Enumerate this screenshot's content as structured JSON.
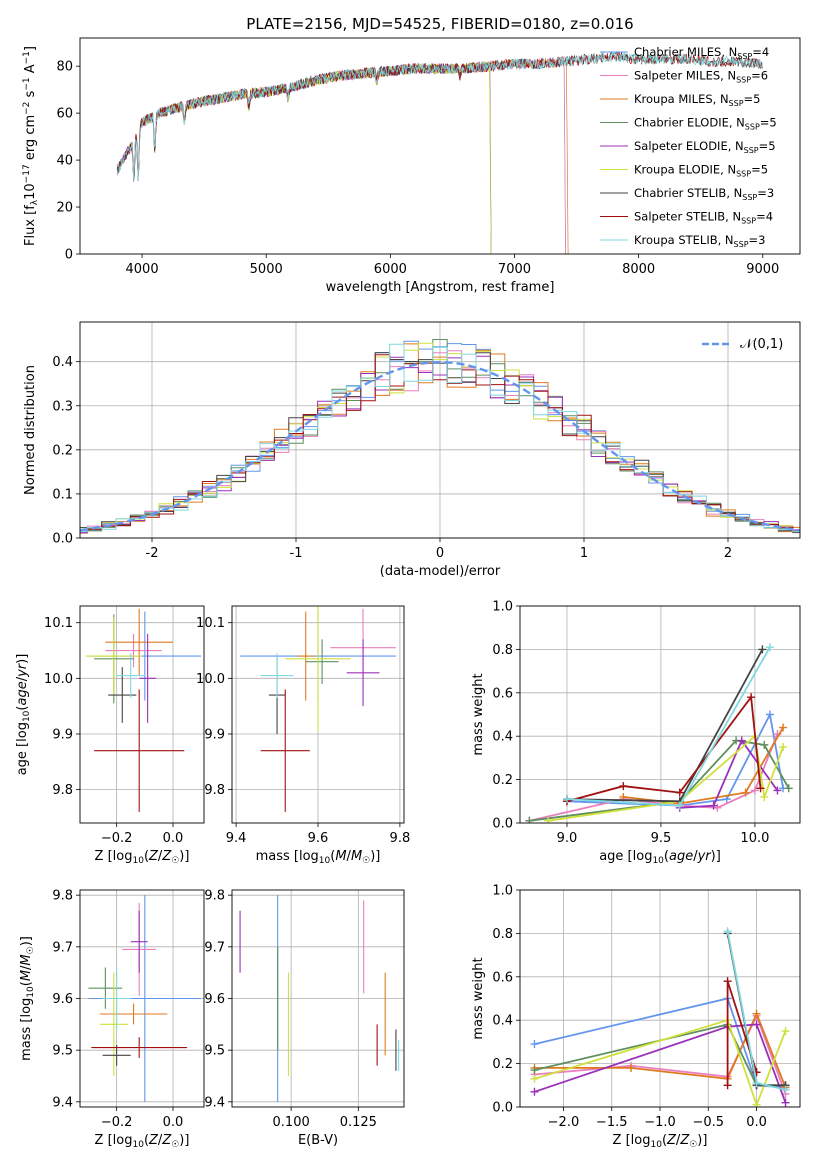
{
  "figure": {
    "title": "PLATE=2156, MJD=54525, FIBERID=0180, z=0.016"
  },
  "chart_data": [
    {
      "type": "line",
      "panel": "spectrum",
      "xlabel": "wavelength [Angstrom, rest frame]",
      "ylabel": "Flux [f_λ 10^-17 erg cm^-2 s^-1 A^-1]",
      "xlim": [
        3500,
        9300
      ],
      "ylim": [
        0,
        92
      ],
      "xticks": [
        4000,
        5000,
        6000,
        7000,
        8000,
        9000
      ],
      "yticks": [
        0,
        20,
        40,
        60,
        80
      ],
      "legend_position": "top-right",
      "series": [
        {
          "name": "Chabrier MILES, N_SSP=4",
          "color": "#6495ed",
          "x_range": [
            3800,
            7400
          ]
        },
        {
          "name": "Salpeter MILES, N_SSP=6",
          "color": "#e87fbf",
          "x_range": [
            3800,
            7400
          ]
        },
        {
          "name": "Kroupa MILES, N_SSP=5",
          "color": "#e07a1f",
          "x_range": [
            3800,
            7420
          ]
        },
        {
          "name": "Chabrier ELODIE, N_SSP=5",
          "color": "#5f8f5f",
          "x_range": [
            3800,
            6800
          ]
        },
        {
          "name": "Salpeter ELODIE, N_SSP=5",
          "color": "#9b30b8",
          "x_range": [
            3800,
            6800
          ]
        },
        {
          "name": "Kroupa ELODIE, N_SSP=5",
          "color": "#cfe03c",
          "x_range": [
            3900,
            6800
          ]
        },
        {
          "name": "Chabrier STELIB, N_SSP=3",
          "color": "#444444",
          "x_range": [
            3800,
            9000
          ]
        },
        {
          "name": "Salpeter STELIB, N_SSP=4",
          "color": "#a01010",
          "x_range": [
            3800,
            9000
          ]
        },
        {
          "name": "Kroupa STELIB, N_SSP=3",
          "color": "#7fd8e0",
          "x_range": [
            3800,
            9000
          ]
        }
      ],
      "continuum": {
        "x": [
          3780,
          3850,
          3920,
          3960,
          4000,
          4100,
          4200,
          4400,
          4600,
          4800,
          5000,
          5200,
          5400,
          5600,
          5800,
          6000,
          6200,
          6400,
          6600,
          6800,
          7000,
          7200,
          7400,
          7600,
          7800,
          8000,
          8200,
          8400,
          8600,
          8800,
          9000
        ],
        "y": [
          34,
          40,
          47,
          52,
          56,
          59,
          61,
          64,
          66,
          68,
          69,
          71,
          74,
          76,
          77,
          78,
          79,
          79,
          79,
          80,
          81,
          81,
          82,
          83,
          84,
          83,
          83,
          83,
          82,
          82,
          81
        ]
      }
    },
    {
      "type": "histogram",
      "panel": "residuals",
      "xlabel": "(data-model)/error",
      "ylabel": "Normed distribution",
      "xlim": [
        -2.5,
        2.5
      ],
      "ylim": [
        0,
        0.49
      ],
      "xticks": [
        -2,
        -1,
        0,
        1,
        2
      ],
      "yticks": [
        0.0,
        0.1,
        0.2,
        0.3,
        0.4
      ],
      "bin_width": 0.1,
      "grid": true,
      "legend": {
        "label": "𝒩(0,1)",
        "position": "top-right",
        "color": "#6495ed",
        "style": "dashed"
      },
      "colors": [
        "#6495ed",
        "#e87fbf",
        "#e07a1f",
        "#5f8f5f",
        "#9b30b8",
        "#cfe03c",
        "#444444",
        "#a01010",
        "#7fd8e0"
      ]
    },
    {
      "type": "scatter",
      "panel": "age-vs-Z",
      "xlabel": "Z [log10(Z/Z☉)]",
      "ylabel": "age [log10(age/yr)]",
      "xlim": [
        -0.33,
        0.11
      ],
      "ylim": [
        9.74,
        10.13
      ],
      "xticks": [
        -0.2,
        0.0
      ],
      "yticks": [
        9.8,
        9.9,
        10.0,
        10.1
      ],
      "grid": true,
      "points": [
        {
          "x": -0.1,
          "y": 10.04,
          "xerr": 0.2,
          "yerr": 0.08,
          "color": "#6495ed"
        },
        {
          "x": -0.14,
          "y": 10.05,
          "xerr": 0.1,
          "yerr": 0.03,
          "color": "#e87fbf"
        },
        {
          "x": -0.12,
          "y": 10.065,
          "xerr": 0.12,
          "yerr": 0.06,
          "color": "#e07a1f"
        },
        {
          "x": -0.21,
          "y": 10.035,
          "xerr": 0.07,
          "yerr": 0.08,
          "color": "#5f8f5f"
        },
        {
          "x": -0.09,
          "y": 10.0,
          "xerr": 0.03,
          "yerr": 0.08,
          "color": "#9b30b8"
        },
        {
          "x": -0.21,
          "y": 10.04,
          "xerr": 0.1,
          "yerr": 0.07,
          "color": "#cfe03c"
        },
        {
          "x": -0.18,
          "y": 9.97,
          "xerr": 0.05,
          "yerr": 0.05,
          "color": "#444444"
        },
        {
          "x": -0.12,
          "y": 9.87,
          "xerr": 0.16,
          "yerr": 0.11,
          "color": "#a01010"
        },
        {
          "x": -0.15,
          "y": 10.005,
          "xerr": 0.05,
          "yerr": 0.04,
          "color": "#7fd8e0"
        }
      ]
    },
    {
      "type": "scatter",
      "panel": "age-vs-mass",
      "xlabel": "mass [log10(M/M☉)]",
      "ylabel": "",
      "xlim": [
        9.39,
        9.81
      ],
      "ylim": [
        9.74,
        10.13
      ],
      "xticks": [
        9.4,
        9.6,
        9.8
      ],
      "yticks": [
        9.8,
        9.9,
        10.0,
        10.1
      ],
      "grid": true,
      "points": [
        {
          "x": 9.6,
          "y": 10.04,
          "xerr": 0.19,
          "yerr": 0.08,
          "color": "#6495ed"
        },
        {
          "x": 9.71,
          "y": 10.055,
          "xerr": 0.08,
          "yerr": 0.07,
          "color": "#e87fbf"
        },
        {
          "x": 9.57,
          "y": 10.04,
          "xerr": 0.02,
          "yerr": 0.08,
          "color": "#e07a1f"
        },
        {
          "x": 9.61,
          "y": 10.03,
          "xerr": 0.04,
          "yerr": 0.04,
          "color": "#5f8f5f"
        },
        {
          "x": 9.71,
          "y": 10.01,
          "xerr": 0.04,
          "yerr": 0.06,
          "color": "#9b30b8"
        },
        {
          "x": 9.6,
          "y": 10.035,
          "xerr": 0.08,
          "yerr": 0.13,
          "color": "#cfe03c"
        },
        {
          "x": 9.5,
          "y": 9.97,
          "xerr": 0.02,
          "yerr": 0.07,
          "color": "#444444"
        },
        {
          "x": 9.52,
          "y": 9.87,
          "xerr": 0.06,
          "yerr": 0.11,
          "color": "#a01010"
        },
        {
          "x": 9.5,
          "y": 10.005,
          "xerr": 0.04,
          "yerr": 0.04,
          "color": "#7fd8e0"
        }
      ]
    },
    {
      "type": "line",
      "panel": "mass-weight-vs-age",
      "xlabel": "age [log10(age/yr)]",
      "ylabel": "mass weight",
      "xlim": [
        8.75,
        10.24
      ],
      "ylim": [
        0,
        1
      ],
      "xticks": [
        9.0,
        9.5,
        10.0
      ],
      "yticks": [
        0.0,
        0.2,
        0.4,
        0.6,
        0.8,
        1.0
      ],
      "grid": true,
      "series": [
        {
          "color": "#6495ed",
          "x": [
            9.0,
            9.6,
            9.85,
            10.08,
            10.15
          ],
          "y": [
            0.1,
            0.08,
            0.11,
            0.5,
            0.16
          ]
        },
        {
          "color": "#e87fbf",
          "x": [
            8.8,
            9.3,
            9.6,
            9.8,
            10.0,
            10.12
          ],
          "y": [
            0.01,
            0.11,
            0.08,
            0.07,
            0.15,
            0.41
          ]
        },
        {
          "color": "#e07a1f",
          "x": [
            9.3,
            9.6,
            9.95,
            10.15
          ],
          "y": [
            0.12,
            0.09,
            0.14,
            0.44
          ]
        },
        {
          "color": "#5f8f5f",
          "x": [
            8.8,
            9.6,
            9.9,
            10.05,
            10.18
          ],
          "y": [
            0.01,
            0.1,
            0.38,
            0.36,
            0.16
          ]
        },
        {
          "color": "#9b30b8",
          "x": [
            9.6,
            9.78,
            9.93,
            10.12
          ],
          "y": [
            0.07,
            0.08,
            0.38,
            0.15
          ]
        },
        {
          "color": "#cfe03c",
          "x": [
            8.9,
            9.6,
            10.0,
            10.05,
            10.15
          ],
          "y": [
            0.01,
            0.1,
            0.4,
            0.12,
            0.35
          ]
        },
        {
          "color": "#444444",
          "x": [
            9.0,
            9.6,
            10.04
          ],
          "y": [
            0.11,
            0.1,
            0.8
          ]
        },
        {
          "color": "#a01010",
          "x": [
            9.0,
            9.3,
            9.6,
            9.98,
            10.03
          ],
          "y": [
            0.1,
            0.17,
            0.14,
            0.58,
            0.16
          ]
        },
        {
          "color": "#7fd8e0",
          "x": [
            9.0,
            9.6,
            10.08
          ],
          "y": [
            0.11,
            0.08,
            0.81
          ]
        }
      ]
    },
    {
      "type": "scatter",
      "panel": "mass-vs-Z",
      "xlabel": "Z [log10(Z/Z☉)]",
      "ylabel": "mass [log10(M/M☉)]",
      "xlim": [
        -0.33,
        0.11
      ],
      "ylim": [
        9.39,
        9.81
      ],
      "xticks": [
        -0.2,
        0.0
      ],
      "yticks": [
        9.4,
        9.5,
        9.6,
        9.7,
        9.8
      ],
      "grid": true,
      "points": [
        {
          "x": -0.1,
          "y": 9.6,
          "xerr": 0.2,
          "yerr": 0.2,
          "color": "#6495ed"
        },
        {
          "x": -0.12,
          "y": 9.695,
          "xerr": 0.06,
          "yerr": 0.09,
          "color": "#e87fbf"
        },
        {
          "x": -0.14,
          "y": 9.57,
          "xerr": 0.12,
          "yerr": 0.02,
          "color": "#e07a1f"
        },
        {
          "x": -0.24,
          "y": 9.62,
          "xerr": 0.06,
          "yerr": 0.04,
          "color": "#5f8f5f"
        },
        {
          "x": -0.12,
          "y": 9.71,
          "xerr": 0.03,
          "yerr": 0.06,
          "color": "#9b30b8"
        },
        {
          "x": -0.21,
          "y": 9.55,
          "xerr": 0.05,
          "yerr": 0.1,
          "color": "#cfe03c"
        },
        {
          "x": -0.2,
          "y": 9.49,
          "xerr": 0.05,
          "yerr": 0.02,
          "color": "#444444"
        },
        {
          "x": -0.12,
          "y": 9.505,
          "xerr": 0.17,
          "yerr": 0.02,
          "color": "#a01010"
        },
        {
          "x": -0.2,
          "y": 9.6,
          "xerr": 0.05,
          "yerr": 0.06,
          "color": "#7fd8e0"
        }
      ]
    },
    {
      "type": "scatter",
      "panel": "mass-vs-EBV",
      "xlabel": "E(B-V)",
      "ylabel": "",
      "xlim": [
        0.078,
        0.142
      ],
      "ylim": [
        9.39,
        9.81
      ],
      "xticks": [
        0.1,
        0.125
      ],
      "xticklabels": [
        "0.100",
        "0.125"
      ],
      "yticks": [
        9.4,
        9.5,
        9.6,
        9.7,
        9.8
      ],
      "grid": true,
      "points": [
        {
          "x": 0.095,
          "y": 9.6,
          "yerr": 0.2,
          "color": "#6495ed"
        },
        {
          "x": 0.127,
          "y": 9.7,
          "yerr": 0.09,
          "color": "#e87fbf"
        },
        {
          "x": 0.135,
          "y": 9.57,
          "yerr": 0.08,
          "color": "#e07a1f"
        },
        {
          "x": 0.095,
          "y": 9.6,
          "yerr": 0.1,
          "color": "#5f8f5f"
        },
        {
          "x": 0.081,
          "y": 9.71,
          "yerr": 0.06,
          "color": "#9b30b8"
        },
        {
          "x": 0.099,
          "y": 9.55,
          "yerr": 0.1,
          "color": "#cfe03c"
        },
        {
          "x": 0.139,
          "y": 9.5,
          "yerr": 0.04,
          "color": "#444444"
        },
        {
          "x": 0.132,
          "y": 9.51,
          "yerr": 0.04,
          "color": "#a01010"
        },
        {
          "x": 0.14,
          "y": 9.49,
          "yerr": 0.03,
          "color": "#7fd8e0"
        }
      ]
    },
    {
      "type": "line",
      "panel": "mass-weight-vs-Z",
      "xlabel": "Z [log10(Z/Z☉)]",
      "ylabel": "mass weight",
      "xlim": [
        -2.45,
        0.45
      ],
      "ylim": [
        0,
        1
      ],
      "xticks": [
        -2.0,
        -1.5,
        -1.0,
        -0.5,
        0.0
      ],
      "yticks": [
        0.0,
        0.2,
        0.4,
        0.6,
        0.8,
        1.0
      ],
      "grid": true,
      "series": [
        {
          "color": "#6495ed",
          "x": [
            -2.3,
            -0.3,
            0.0,
            0.3
          ],
          "y": [
            0.29,
            0.5,
            0.1,
            0.09
          ]
        },
        {
          "color": "#e87fbf",
          "x": [
            -2.3,
            -1.3,
            -0.3,
            0.0,
            0.3
          ],
          "y": [
            0.15,
            0.19,
            0.14,
            0.42,
            0.06
          ]
        },
        {
          "color": "#e07a1f",
          "x": [
            -2.3,
            -1.3,
            -0.3,
            0.0,
            0.3
          ],
          "y": [
            0.18,
            0.18,
            0.13,
            0.43,
            0.09
          ]
        },
        {
          "color": "#5f8f5f",
          "x": [
            -2.3,
            -0.3,
            0.0,
            0.3
          ],
          "y": [
            0.17,
            0.38,
            0.1,
            0.1
          ]
        },
        {
          "color": "#9b30b8",
          "x": [
            -2.3,
            -0.3,
            0.0,
            0.3
          ],
          "y": [
            0.07,
            0.37,
            0.38,
            0.02
          ]
        },
        {
          "color": "#cfe03c",
          "x": [
            -2.3,
            -0.3,
            0.0,
            0.3
          ],
          "y": [
            0.13,
            0.4,
            0.01,
            0.35
          ]
        },
        {
          "color": "#444444",
          "x": [
            -0.3,
            0.0,
            0.3
          ],
          "y": [
            0.8,
            0.1,
            0.1
          ]
        },
        {
          "color": "#a01010",
          "x": [
            -0.3,
            -0.3,
            0.0,
            0.0
          ],
          "y": [
            0.1,
            0.58,
            0.16,
            0.16
          ]
        },
        {
          "color": "#7fd8e0",
          "x": [
            -0.3,
            0.0,
            0.3
          ],
          "y": [
            0.81,
            0.11,
            0.08
          ]
        }
      ]
    }
  ]
}
